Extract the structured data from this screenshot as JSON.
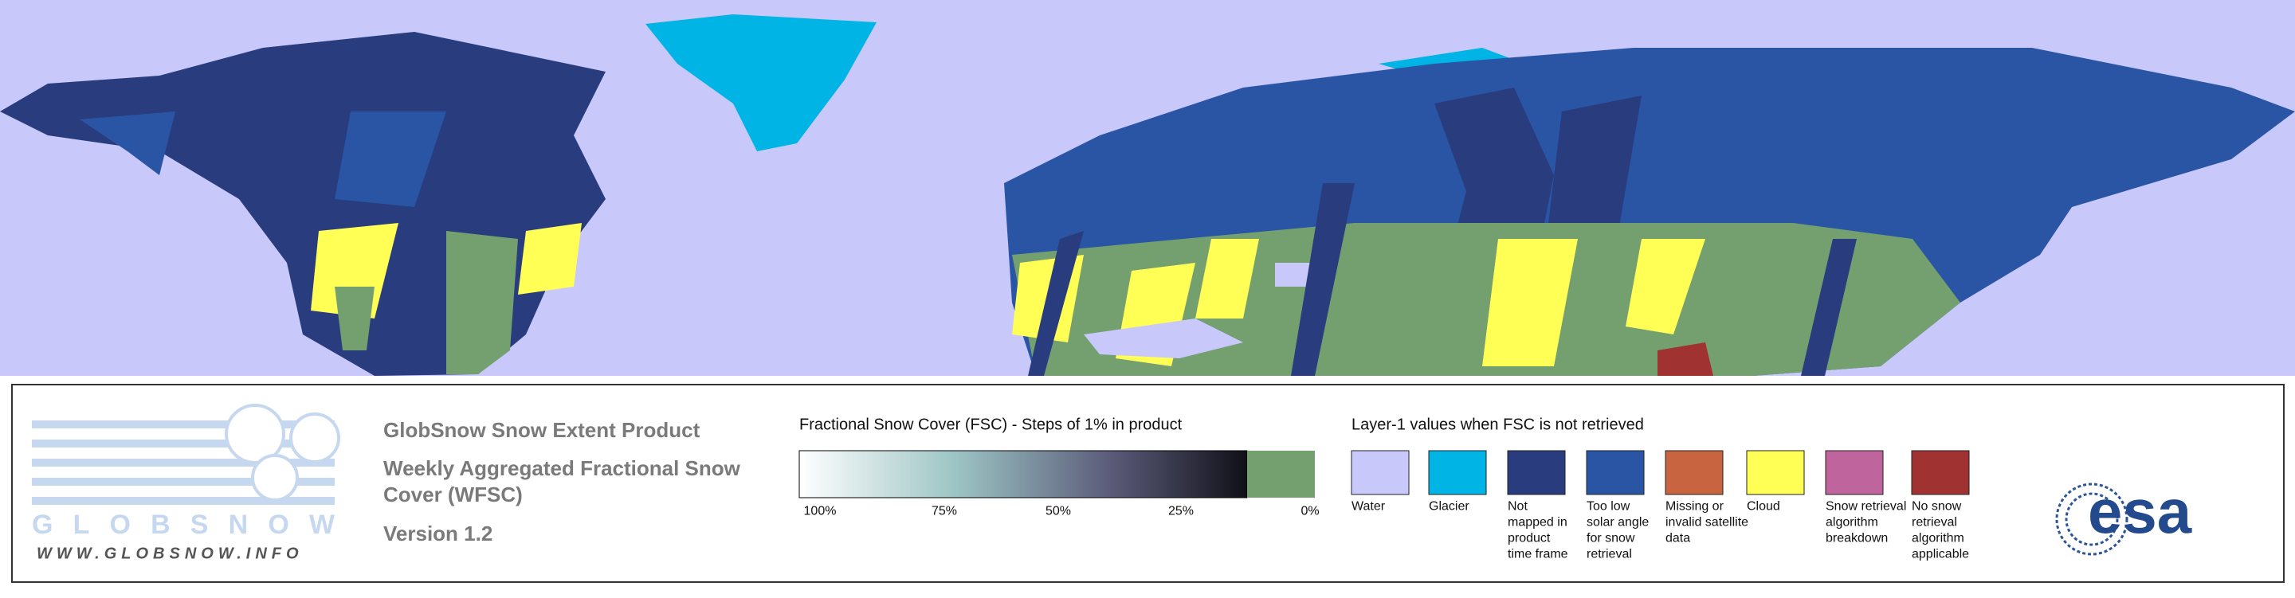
{
  "logo": {
    "name": "GLOBSNOW",
    "url": "WWW.GLOBSNOW.INFO"
  },
  "product": {
    "title": "GlobSnow Snow Extent Product",
    "subtitle_lines": [
      "Weekly Aggregated Fractional Snow",
      "Cover (WFSC)"
    ],
    "version": "Version 1.2"
  },
  "colorbar": {
    "title": "Fractional Snow Cover (FSC) - Steps of 1% in product",
    "ticks": [
      "100%",
      "75%",
      "50%",
      "25%",
      "0%"
    ]
  },
  "layer1": {
    "title": "Layer-1 values when FSC is not retrieved",
    "items": [
      {
        "label_lines": [
          "Water"
        ],
        "color": "#c8c8fa"
      },
      {
        "label_lines": [
          "Glacier"
        ],
        "color": "#00b4e6"
      },
      {
        "label_lines": [
          "Not",
          "mapped in",
          "product",
          "time frame"
        ],
        "color": "#283c7e"
      },
      {
        "label_lines": [
          "Too low",
          "solar angle",
          "for snow",
          "retrieval"
        ],
        "color": "#2a55a5"
      },
      {
        "label_lines": [
          "Missing or",
          "invalid satellite",
          "data"
        ],
        "color": "#c86440"
      },
      {
        "label_lines": [
          "Cloud"
        ],
        "color": "#ffff55"
      },
      {
        "label_lines": [
          "Snow retrieval",
          "algorithm",
          "breakdown"
        ],
        "color": "#c0649e"
      },
      {
        "label_lines": [
          "No snow",
          "retrieval",
          "algorithm",
          "applicable"
        ],
        "color": "#a03232"
      }
    ]
  },
  "esa": "esa"
}
